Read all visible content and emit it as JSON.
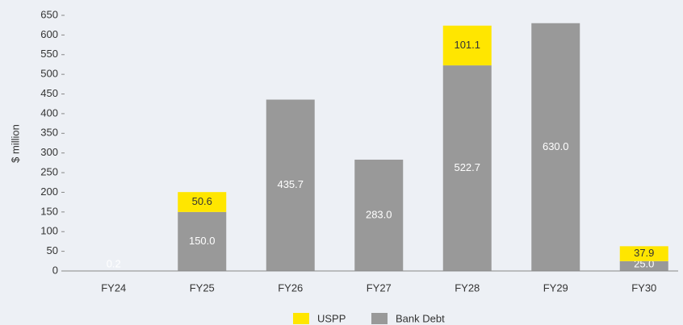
{
  "chart_data": {
    "type": "stacked_bar",
    "y_axis_label": "$ million",
    "categories": [
      "FY24",
      "FY25",
      "FY26",
      "FY27",
      "FY28",
      "FY29",
      "FY30"
    ],
    "series": [
      {
        "name": "Bank Debt",
        "color": "#999999",
        "values": [
          0.2,
          150,
          435.7,
          283,
          522.7,
          630,
          25
        ],
        "value_labels": [
          "0.2",
          "150.0",
          "435.7",
          "283.0",
          "522.7",
          "630.0",
          "25.0"
        ]
      },
      {
        "name": "USPP",
        "color": "#ffe600",
        "values": [
          null,
          50.6,
          null,
          null,
          101.1,
          null,
          37.9
        ],
        "value_labels": [
          null,
          "50.6",
          null,
          null,
          "101.1",
          null,
          "37.9"
        ]
      }
    ],
    "ylim": [
      0,
      650
    ],
    "yticks": [
      0,
      50,
      100,
      150,
      200,
      250,
      300,
      350,
      400,
      450,
      500,
      550,
      600,
      650
    ],
    "legend": "bottom"
  }
}
